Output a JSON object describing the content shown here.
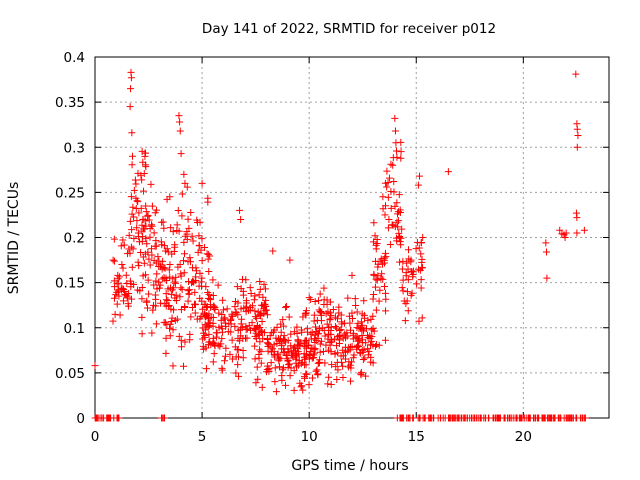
{
  "chart_data": {
    "type": "scatter",
    "title": "Day 141 of 2022, SRMTID for receiver p012",
    "xlabel": "GPS time / hours",
    "ylabel": "SRMTID / TECUs",
    "xlim": [
      0,
      24
    ],
    "ylim": [
      0,
      0.4
    ],
    "xticks": [
      0,
      5,
      10,
      15,
      20
    ],
    "xtick_labels": [
      "0",
      "5",
      "10",
      "15",
      "20"
    ],
    "yticks": [
      0,
      0.05,
      0.1,
      0.15,
      0.2,
      0.25,
      0.3,
      0.35,
      0.4
    ],
    "ytick_labels": [
      "0",
      "0.05",
      "0.1",
      "0.15",
      "0.2",
      "0.25",
      "0.3",
      "0.35",
      "0.4"
    ],
    "grid": true,
    "marker": "+",
    "colors": {
      "series": "#ff0000",
      "grid": "#a0a0a0",
      "axis": "#000000"
    },
    "segments": [
      {
        "x": [
          0.0,
          1.2
        ],
        "center": 0.0,
        "spread": 0.0,
        "n": 25
      },
      {
        "x": [
          3.1,
          3.3
        ],
        "center": 0.0,
        "spread": 0.0,
        "n": 4
      },
      {
        "x": [
          14.1,
          22.9
        ],
        "center": 0.0,
        "spread": 0.0,
        "n": 170
      },
      {
        "x": [
          0.8,
          1.6
        ],
        "center": 0.15,
        "spread": 0.04,
        "n": 45
      },
      {
        "x": [
          1.6,
          2.4
        ],
        "center": 0.2,
        "spread": 0.07,
        "n": 70
      },
      {
        "x": [
          2.4,
          3.3
        ],
        "center": 0.17,
        "spread": 0.06,
        "n": 65
      },
      {
        "x": [
          3.3,
          4.4
        ],
        "center": 0.16,
        "spread": 0.07,
        "n": 85
      },
      {
        "x": [
          4.4,
          5.4
        ],
        "center": 0.16,
        "spread": 0.06,
        "n": 60
      },
      {
        "x": [
          5.0,
          6.5
        ],
        "center": 0.1,
        "spread": 0.035,
        "n": 95
      },
      {
        "x": [
          6.5,
          8.0
        ],
        "center": 0.1,
        "spread": 0.045,
        "n": 110
      },
      {
        "x": [
          8.0,
          10.0
        ],
        "center": 0.075,
        "spread": 0.03,
        "n": 150
      },
      {
        "x": [
          10.0,
          12.0
        ],
        "center": 0.09,
        "spread": 0.035,
        "n": 150
      },
      {
        "x": [
          12.0,
          13.0
        ],
        "center": 0.085,
        "spread": 0.03,
        "n": 70
      },
      {
        "x": [
          13.0,
          13.6
        ],
        "center": 0.17,
        "spread": 0.06,
        "n": 45
      },
      {
        "x": [
          13.6,
          14.3
        ],
        "center": 0.24,
        "spread": 0.05,
        "n": 40
      },
      {
        "x": [
          14.3,
          15.3
        ],
        "center": 0.16,
        "spread": 0.035,
        "n": 45
      }
    ],
    "points": [
      {
        "x": 0.0,
        "y": 0.058
      },
      {
        "x": 1.68,
        "y": 0.383
      },
      {
        "x": 1.7,
        "y": 0.377
      },
      {
        "x": 1.66,
        "y": 0.365
      },
      {
        "x": 1.64,
        "y": 0.345
      },
      {
        "x": 1.72,
        "y": 0.316
      },
      {
        "x": 1.75,
        "y": 0.29
      },
      {
        "x": 3.92,
        "y": 0.335
      },
      {
        "x": 3.95,
        "y": 0.328
      },
      {
        "x": 3.98,
        "y": 0.318
      },
      {
        "x": 4.02,
        "y": 0.293
      },
      {
        "x": 4.15,
        "y": 0.27
      },
      {
        "x": 4.2,
        "y": 0.26
      },
      {
        "x": 5.0,
        "y": 0.26
      },
      {
        "x": 6.75,
        "y": 0.23
      },
      {
        "x": 6.8,
        "y": 0.22
      },
      {
        "x": 8.3,
        "y": 0.185
      },
      {
        "x": 9.1,
        "y": 0.175
      },
      {
        "x": 12.0,
        "y": 0.158
      },
      {
        "x": 14.0,
        "y": 0.332
      },
      {
        "x": 14.03,
        "y": 0.318
      },
      {
        "x": 14.05,
        "y": 0.305
      },
      {
        "x": 13.9,
        "y": 0.28
      },
      {
        "x": 13.95,
        "y": 0.262
      },
      {
        "x": 15.15,
        "y": 0.268
      },
      {
        "x": 15.1,
        "y": 0.258
      },
      {
        "x": 15.3,
        "y": 0.2
      },
      {
        "x": 16.5,
        "y": 0.273
      },
      {
        "x": 21.05,
        "y": 0.194
      },
      {
        "x": 21.08,
        "y": 0.184
      },
      {
        "x": 21.1,
        "y": 0.155
      },
      {
        "x": 21.7,
        "y": 0.208
      },
      {
        "x": 21.8,
        "y": 0.204
      },
      {
        "x": 21.9,
        "y": 0.203
      },
      {
        "x": 21.95,
        "y": 0.2
      },
      {
        "x": 22.0,
        "y": 0.205
      },
      {
        "x": 22.45,
        "y": 0.381
      },
      {
        "x": 22.5,
        "y": 0.326
      },
      {
        "x": 22.52,
        "y": 0.32
      },
      {
        "x": 22.55,
        "y": 0.313
      },
      {
        "x": 22.52,
        "y": 0.3
      },
      {
        "x": 22.48,
        "y": 0.227
      },
      {
        "x": 22.5,
        "y": 0.222
      },
      {
        "x": 22.5,
        "y": 0.205
      },
      {
        "x": 22.85,
        "y": 0.208
      }
    ]
  }
}
